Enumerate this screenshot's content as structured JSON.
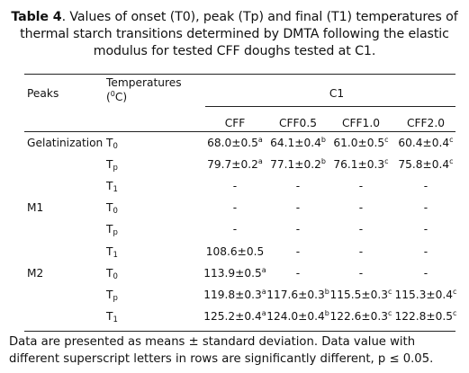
{
  "caption": {
    "label": "Table 4",
    "text": ". Values of onset (T0), peak (Tp) and final (T1) temperatures of thermal starch transitions determined by DMTA following the elastic modulus for tested CFF doughs tested at C1."
  },
  "header": {
    "peaks": "Peaks",
    "temperatures": "Temperatures",
    "unit_open": "(",
    "unit_deg": "0",
    "unit_close": "C)",
    "group": "C1",
    "columns": [
      "CFF",
      "CFF0.5",
      "CFF1.0",
      "CFF2.0"
    ]
  },
  "rows": [
    {
      "peak": "Gelatinization",
      "t": "T",
      "sub": "0",
      "cells": [
        [
          "68.0±0.5",
          "a"
        ],
        [
          "64.1±0.4",
          "b"
        ],
        [
          "61.0±0.5",
          "c"
        ],
        [
          "60.4±0.4",
          "c"
        ]
      ]
    },
    {
      "peak": "",
      "t": "T",
      "sub": "p",
      "cells": [
        [
          "79.7±0.2",
          "a"
        ],
        [
          "77.1±0.2",
          "b"
        ],
        [
          "76.1±0.3",
          "c"
        ],
        [
          "75.8±0.4",
          "c"
        ]
      ]
    },
    {
      "peak": "",
      "t": "T",
      "sub": "1",
      "cells": [
        [
          "-",
          ""
        ],
        [
          "-",
          ""
        ],
        [
          "-",
          ""
        ],
        [
          "-",
          ""
        ]
      ]
    },
    {
      "peak": "M1",
      "t": "T",
      "sub": "0",
      "cells": [
        [
          "-",
          ""
        ],
        [
          "-",
          ""
        ],
        [
          "-",
          ""
        ],
        [
          "-",
          ""
        ]
      ]
    },
    {
      "peak": "",
      "t": "T",
      "sub": "p",
      "cells": [
        [
          "-",
          ""
        ],
        [
          "-",
          ""
        ],
        [
          "-",
          ""
        ],
        [
          "-",
          ""
        ]
      ]
    },
    {
      "peak": "",
      "t": "T",
      "sub": "1",
      "cells": [
        [
          "108.6±0.5",
          ""
        ],
        [
          "-",
          ""
        ],
        [
          "-",
          ""
        ],
        [
          "-",
          ""
        ]
      ]
    },
    {
      "peak": "M2",
      "t": "T",
      "sub": "0",
      "cells": [
        [
          "113.9±0.5",
          "a"
        ],
        [
          "-",
          ""
        ],
        [
          "-",
          ""
        ],
        [
          "-",
          ""
        ]
      ]
    },
    {
      "peak": "",
      "t": "T",
      "sub": "p",
      "cells": [
        [
          "119.8±0.3",
          "a"
        ],
        [
          "117.6±0.3",
          "b"
        ],
        [
          "115.5±0.3",
          "c"
        ],
        [
          "115.3±0.4",
          "c"
        ]
      ]
    },
    {
      "peak": "",
      "t": "T",
      "sub": "1",
      "cells": [
        [
          "125.2±0.4",
          "a"
        ],
        [
          "124.0±0.4",
          "b"
        ],
        [
          "122.6±0.3",
          "c"
        ],
        [
          "122.8±0.5",
          "c"
        ]
      ]
    }
  ],
  "footnote": "Data are presented as means ± standard deviation. Data value with different superscript letters in rows are significantly different, p ≤ 0.05."
}
